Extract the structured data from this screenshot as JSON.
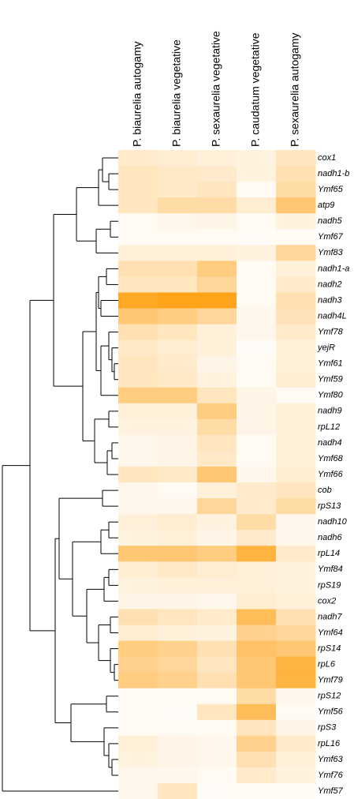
{
  "chart_data": {
    "type": "heatmap",
    "columns": [
      "P. biaurelia autogamy",
      "P. biaurelia vegetative",
      "P. sexaurelia vegetative",
      "P. caudatum vegetative",
      "P. sexaurelia autogamy"
    ],
    "rows": [
      "cox1",
      "nadh1-b",
      "Ymf65",
      "atp9",
      "nadh5",
      "Ymf67",
      "Ymf83",
      "nadh1-a",
      "nadh2",
      "nadh3",
      "nadh4L",
      "Ymf78",
      "yejR",
      "Ymf61",
      "Ymf59",
      "Ymf80",
      "nadh9",
      "rpL12",
      "nadh4",
      "Ymf68",
      "Ymf66",
      "cob",
      "rpS13",
      "nadh10",
      "nadh6",
      "rpL14",
      "Ymf84",
      "rpS19",
      "cox2",
      "nadh7",
      "Ymf64",
      "rpS14",
      "rpL6",
      "Ymf79",
      "rpS12",
      "Ymf56",
      "rpS3",
      "rpL16",
      "Ymf63",
      "Ymf76",
      "Ymf57"
    ],
    "values": [
      [
        20,
        18,
        15,
        12,
        25
      ],
      [
        25,
        22,
        20,
        12,
        30
      ],
      [
        25,
        22,
        25,
        5,
        35
      ],
      [
        25,
        35,
        35,
        18,
        55
      ],
      [
        5,
        8,
        10,
        5,
        12
      ],
      [
        5,
        5,
        5,
        3,
        5
      ],
      [
        15,
        15,
        15,
        12,
        40
      ],
      [
        30,
        30,
        50,
        5,
        15
      ],
      [
        25,
        25,
        40,
        5,
        20
      ],
      [
        85,
        90,
        90,
        5,
        30
      ],
      [
        55,
        50,
        40,
        8,
        28
      ],
      [
        30,
        25,
        15,
        8,
        20
      ],
      [
        22,
        18,
        15,
        3,
        15
      ],
      [
        25,
        20,
        10,
        5,
        15
      ],
      [
        25,
        22,
        12,
        5,
        18
      ],
      [
        50,
        50,
        25,
        10,
        5
      ],
      [
        15,
        15,
        50,
        10,
        15
      ],
      [
        12,
        12,
        35,
        10,
        15
      ],
      [
        8,
        10,
        25,
        5,
        15
      ],
      [
        8,
        10,
        22,
        5,
        15
      ],
      [
        25,
        22,
        55,
        8,
        18
      ],
      [
        8,
        5,
        15,
        20,
        25
      ],
      [
        8,
        8,
        40,
        20,
        35
      ],
      [
        15,
        18,
        12,
        35,
        8
      ],
      [
        12,
        15,
        10,
        20,
        8
      ],
      [
        55,
        55,
        50,
        75,
        20
      ],
      [
        18,
        22,
        18,
        15,
        12
      ],
      [
        12,
        15,
        15,
        15,
        12
      ],
      [
        10,
        10,
        8,
        18,
        15
      ],
      [
        30,
        25,
        20,
        65,
        30
      ],
      [
        18,
        15,
        12,
        45,
        40
      ],
      [
        50,
        45,
        30,
        60,
        55
      ],
      [
        45,
        40,
        25,
        55,
        75
      ],
      [
        50,
        45,
        30,
        55,
        75
      ],
      [
        5,
        5,
        5,
        35,
        8
      ],
      [
        5,
        3,
        25,
        65,
        5
      ],
      [
        5,
        5,
        5,
        25,
        10
      ],
      [
        15,
        10,
        8,
        45,
        20
      ],
      [
        12,
        10,
        8,
        30,
        15
      ],
      [
        8,
        8,
        5,
        20,
        12
      ],
      [
        8,
        25,
        3,
        5,
        5
      ]
    ],
    "vlim": [
      0,
      100
    ],
    "color_low": "#ffffff",
    "color_high": "#ff9900"
  }
}
